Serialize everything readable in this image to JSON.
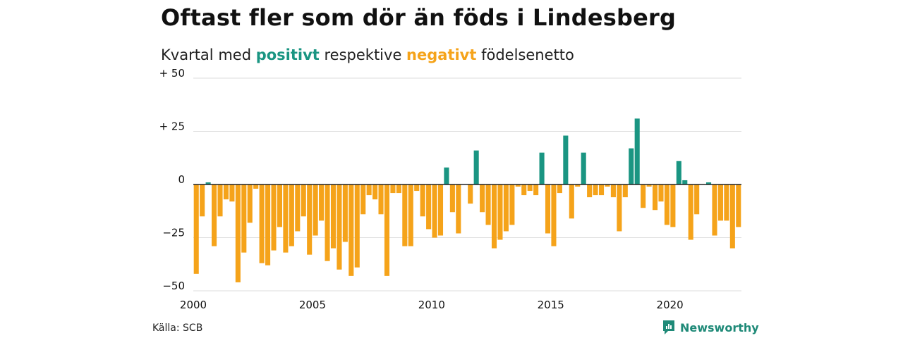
{
  "title": "Oftast fler som dör än föds i Lindesberg",
  "subtitle": {
    "prefix": "Kvartal med ",
    "positive_word": "positivt",
    "middle": " respektive ",
    "negative_word": "negativt",
    "suffix": " födelsenetto"
  },
  "source": "Källa: SCB",
  "brand": "Newsworthy",
  "colors": {
    "positive": "#1a9582",
    "negative": "#f5a31a",
    "grid": "#dddddd",
    "axis": "#222222",
    "brand": "#1f8a78"
  },
  "chart_data": {
    "type": "bar",
    "title": "Oftast fler som dör än föds i Lindesberg",
    "xlabel": "",
    "ylabel": "",
    "x_start": 2000,
    "x_end": 2023,
    "periods_per_year": 4,
    "ylim": [
      -50,
      50
    ],
    "y_ticks": [
      50,
      25,
      0,
      -25,
      -50
    ],
    "y_tick_labels": [
      "+ 50",
      "+ 25",
      "0",
      "−25",
      "−50"
    ],
    "x_ticks": [
      2000,
      2005,
      2010,
      2015,
      2020
    ],
    "x_tick_labels": [
      "2000",
      "2005",
      "2010",
      "2015",
      "2020"
    ],
    "grid": true,
    "values": [
      -42,
      -15,
      1,
      -29,
      -15,
      -7,
      -8,
      -46,
      -32,
      -18,
      -2,
      -37,
      -38,
      -31,
      -20,
      -32,
      -29,
      -22,
      -15,
      -33,
      -24,
      -17,
      -36,
      -30,
      -40,
      -27,
      -43,
      -39,
      -14,
      -5,
      -7,
      -14,
      -43,
      -4,
      -4,
      -29,
      -29,
      -3,
      -15,
      -21,
      -25,
      -24,
      8,
      -13,
      -23,
      0,
      -9,
      16,
      -13,
      -19,
      -30,
      -26,
      -22,
      -19,
      -1,
      -5,
      -3,
      -5,
      15,
      -23,
      -29,
      -4,
      23,
      -16,
      -1,
      15,
      -6,
      -5,
      -5,
      -1,
      -6,
      -22,
      -6,
      17,
      31,
      -11,
      -1,
      -12,
      -8,
      -19,
      -20,
      11,
      2,
      -26,
      -14,
      0,
      1,
      -24,
      -17,
      -17,
      -30,
      -20
    ]
  }
}
